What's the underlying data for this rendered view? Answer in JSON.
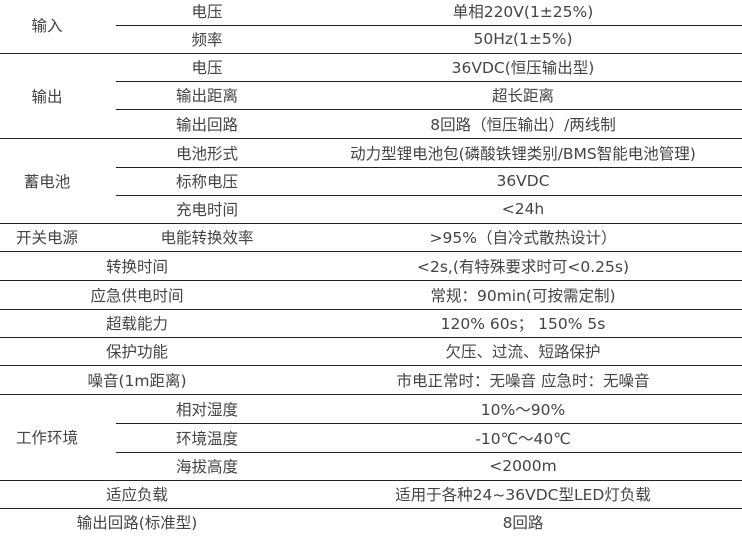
{
  "spec_table": {
    "groups": [
      {
        "label": "输入",
        "rows": [
          {
            "name": "电压",
            "value": "单相220V(1±25%)"
          },
          {
            "name": "频率",
            "value": "50Hz(1±5%)"
          }
        ]
      },
      {
        "label": "输出",
        "rows": [
          {
            "name": "电压",
            "value": "36VDC(恒压输出型)"
          },
          {
            "name": "输出距离",
            "value": "超长距离"
          },
          {
            "name": "输出回路",
            "value": "8回路（恒压输出）/两线制"
          }
        ]
      },
      {
        "label": "蓄电池",
        "rows": [
          {
            "name": "电池形式",
            "value": "动力型锂电池包(磷酸铁锂类别/BMS智能电池管理)"
          },
          {
            "name": "标称电压",
            "value": "36VDC"
          },
          {
            "name": "充电时间",
            "value": "<24h"
          }
        ]
      },
      {
        "label": "开关电源",
        "rows": [
          {
            "name": "电能转换效率",
            "value": ">95%（自冷式散热设计）"
          }
        ]
      },
      {
        "label": "",
        "merged": true,
        "rows": [
          {
            "name": "转换时间",
            "value": "<2s,(有特殊要求时可<0.25s)"
          }
        ]
      },
      {
        "label": "",
        "merged": true,
        "rows": [
          {
            "name": "应急供电时间",
            "value": "常规：90min(可按需定制)"
          }
        ]
      },
      {
        "label": "",
        "merged": true,
        "rows": [
          {
            "name": "超载能力",
            "value": "120% 60s；   150% 5s"
          }
        ]
      },
      {
        "label": "",
        "merged": true,
        "rows": [
          {
            "name": "保护功能",
            "value": "欠压、过流、短路保护"
          }
        ]
      },
      {
        "label": "",
        "merged": true,
        "rows": [
          {
            "name": "噪音(1m距离)",
            "value": "市电正常时：无噪音   应急时：无噪音"
          }
        ]
      },
      {
        "label": "工作环境",
        "rows": [
          {
            "name": "相对湿度",
            "value": "10%～90%"
          },
          {
            "name": "环境温度",
            "value": "-10℃～40℃"
          },
          {
            "name": "海拔高度",
            "value": "<2000m"
          }
        ]
      },
      {
        "label": "",
        "merged": true,
        "rows": [
          {
            "name": "适应负载",
            "value": "适用于各种24~36VDC型LED灯负载"
          }
        ]
      },
      {
        "label": "",
        "merged": true,
        "rows": [
          {
            "name": "输出回路(标准型)",
            "value": "8回路"
          }
        ]
      }
    ]
  }
}
